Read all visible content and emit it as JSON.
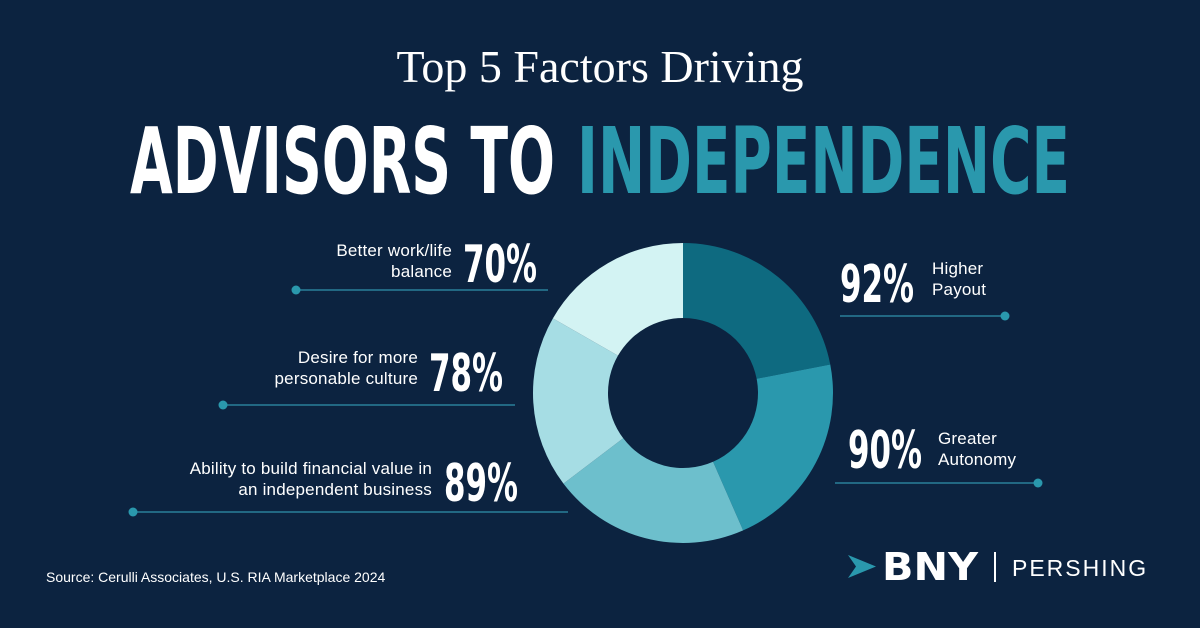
{
  "title": "Top 5 Factors Driving",
  "headline": "ADVISORS TO",
  "headline_highlight": "INDEPENDENCE",
  "source": "Source: Cerulli Associates, U.S. RIA Marketplace 2024",
  "brand": {
    "name": "BNY",
    "division": "PERSHING"
  },
  "chart_data": {
    "type": "donut",
    "categories": [
      "Higher\nPayout",
      "Greater\nAutonomy",
      "Ability to build financial value in\nan independent business",
      "Desire for more\npersonable culture",
      "Better work/life\nbalance"
    ],
    "values": [
      92,
      90,
      89,
      78,
      70
    ],
    "value_labels": [
      "92%",
      "90%",
      "89%",
      "78%",
      "70%"
    ],
    "colors": [
      "#0e6a80",
      "#2a98ad",
      "#6dbfcc",
      "#a6dde4",
      "#d3f3f3"
    ]
  }
}
